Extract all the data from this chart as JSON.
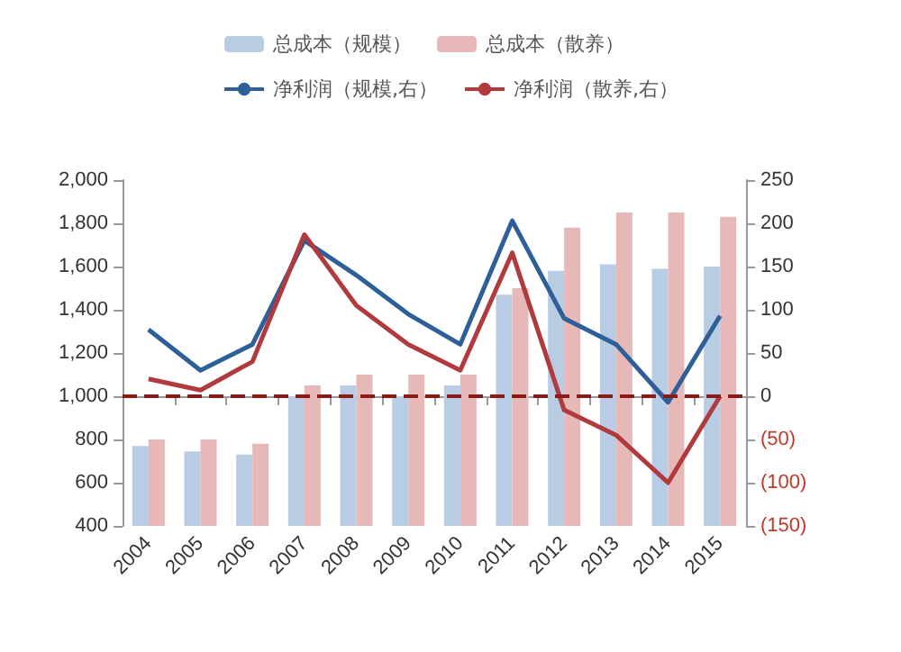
{
  "chart_data": {
    "type": "bar",
    "categories": [
      "2004",
      "2005",
      "2006",
      "2007",
      "2008",
      "2009",
      "2010",
      "2011",
      "2012",
      "2013",
      "2014",
      "2015"
    ],
    "series": [
      {
        "name": "总成本（规模）",
        "color": "#b8cce4",
        "values": [
          770,
          745,
          730,
          1000,
          1050,
          1000,
          1050,
          1470,
          1580,
          1610,
          1590,
          1600
        ]
      },
      {
        "name": "总成本（散养）",
        "color": "#e6b9b8",
        "values": [
          800,
          800,
          780,
          1050,
          1100,
          1100,
          1100,
          1500,
          1780,
          1850,
          1850,
          1830
        ]
      },
      {
        "name": "净利润（规模,右）",
        "type": "line",
        "axis": "y2",
        "color": "#2e5f98",
        "values": [
          77,
          30,
          60,
          180,
          140,
          95,
          60,
          203,
          90,
          60,
          -7,
          93
        ]
      },
      {
        "name": "净利润（散养,右）",
        "type": "line",
        "axis": "y2",
        "color": "#b03a3e",
        "values": [
          20,
          7,
          40,
          187,
          105,
          60,
          30,
          166,
          -16,
          -45,
          -100,
          0
        ]
      }
    ],
    "ylim": [
      400,
      2000
    ],
    "yticks": [
      400,
      600,
      800,
      {
        "value": 1000,
        "label": "1,000"
      },
      {
        "value": 1200,
        "label": "1,200"
      },
      {
        "value": 1400,
        "label": "1,400"
      },
      {
        "value": 1600,
        "label": "1,600"
      },
      {
        "value": 1800,
        "label": "1,800"
      },
      {
        "value": 2000,
        "label": "2,000"
      }
    ],
    "y2lim": [
      -150,
      250
    ],
    "y2ticks": [
      {
        "value": -150,
        "label": "(150)"
      },
      {
        "value": -100,
        "label": "(100)"
      },
      {
        "value": -50,
        "label": "(50)"
      },
      0,
      50,
      100,
      150,
      200,
      250
    ],
    "ref_lines": [
      {
        "axis": "y2",
        "value": 0,
        "color": "#8b1a1a",
        "line_style": "dashed"
      }
    ],
    "grid": false,
    "legend": "top",
    "marker": "none"
  }
}
